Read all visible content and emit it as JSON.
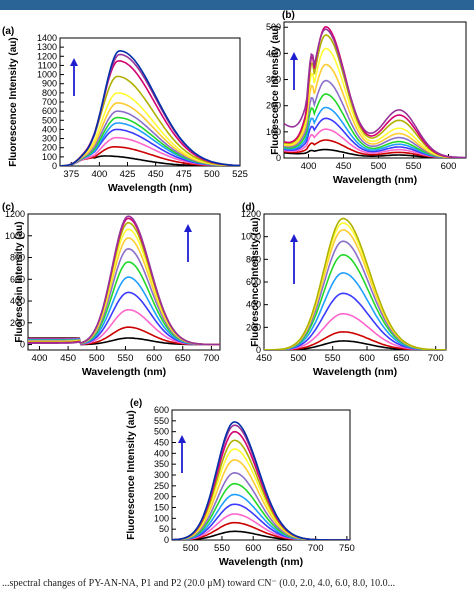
{
  "page": {
    "caption": "...spectral changes of PY-AN-NA, P1 and P2 (20.0 μM) toward CN⁻ (0.0, 2.0, 4.0, 6.0, 8.0, 10.0..."
  },
  "colors": {
    "header_bar": "#2a6496",
    "arrow": "#1f1fcf",
    "palette": [
      "#000000",
      "#cc0000",
      "#ff66cc",
      "#3b3bff",
      "#1f9fff",
      "#23d82a",
      "#8c6fc9",
      "#ffcc33",
      "#ffff33",
      "#b0b000",
      "#d40070",
      "#993399",
      "#002fa8",
      "#00c8d8",
      "#445566",
      "#2a6a2a",
      "#111111"
    ]
  },
  "chart_data": [
    {
      "panel": "(a)",
      "type": "line",
      "xlabel": "Wavelength (nm)",
      "ylabel": "Fluorescence Intensity (au)",
      "xlim": [
        365,
        525
      ],
      "ylim": [
        0,
        1400
      ],
      "xticks": [
        375,
        400,
        425,
        450,
        475,
        500,
        525
      ],
      "yticks": [
        0,
        100,
        200,
        300,
        400,
        500,
        600,
        700,
        800,
        900,
        1000,
        1100,
        1200,
        1300,
        1400
      ],
      "arrow": "up",
      "series_peaks": [
        {
          "peak_x": 405,
          "peak_y": 110
        },
        {
          "peak_x": 413,
          "peak_y": 210
        },
        {
          "peak_x": 415,
          "peak_y": 310
        },
        {
          "peak_x": 415,
          "peak_y": 400
        },
        {
          "peak_x": 416,
          "peak_y": 470
        },
        {
          "peak_x": 416,
          "peak_y": 530
        },
        {
          "peak_x": 416,
          "peak_y": 600
        },
        {
          "peak_x": 416,
          "peak_y": 690
        },
        {
          "peak_x": 416,
          "peak_y": 800
        },
        {
          "peak_x": 416,
          "peak_y": 980
        },
        {
          "peak_x": 417,
          "peak_y": 1150
        },
        {
          "peak_x": 418,
          "peak_y": 1220
        },
        {
          "peak_x": 418,
          "peak_y": 1260
        }
      ]
    },
    {
      "panel": "(b)",
      "type": "line",
      "xlabel": "Wavelength (nm)",
      "ylabel": "Fluorescence Intensity (au)",
      "xlim": [
        365,
        625
      ],
      "ylim": [
        0,
        520
      ],
      "xticks": [
        400,
        450,
        500,
        550,
        600
      ],
      "yticks": [
        0,
        100,
        200,
        300,
        400,
        500
      ],
      "arrow": "up",
      "series_peaks": [
        {
          "peak_x": 425,
          "peak_y": 25,
          "second_peak_y": 10
        },
        {
          "peak_x": 425,
          "peak_y": 60,
          "second_peak_y": 20
        },
        {
          "peak_x": 425,
          "peak_y": 100,
          "second_peak_y": 30
        },
        {
          "peak_x": 425,
          "peak_y": 140,
          "second_peak_y": 40
        },
        {
          "peak_x": 425,
          "peak_y": 180,
          "second_peak_y": 50
        },
        {
          "peak_x": 425,
          "peak_y": 230,
          "second_peak_y": 60
        },
        {
          "peak_x": 425,
          "peak_y": 280,
          "second_peak_y": 75
        },
        {
          "peak_x": 425,
          "peak_y": 340,
          "second_peak_y": 90
        },
        {
          "peak_x": 425,
          "peak_y": 400,
          "second_peak_y": 110
        },
        {
          "peak_x": 425,
          "peak_y": 450,
          "second_peak_y": 140
        },
        {
          "peak_x": 425,
          "peak_y": 480,
          "second_peak_y": 160
        },
        {
          "peak_x": 425,
          "peak_y": 445,
          "second_peak_y": 175
        }
      ]
    },
    {
      "panel": "(c)",
      "type": "line",
      "xlabel": "Wavelength (nm)",
      "ylabel": "Fluorescein Intensity (au)",
      "xlim": [
        380,
        715
      ],
      "ylim": [
        -50,
        1200
      ],
      "xticks": [
        400,
        450,
        500,
        550,
        600,
        650,
        700
      ],
      "yticks": [
        0,
        200,
        400,
        600,
        800,
        1000,
        1200
      ],
      "arrow": "up",
      "series_peaks": [
        {
          "peak_x": 555,
          "peak_y": 60
        },
        {
          "peak_x": 555,
          "peak_y": 160
        },
        {
          "peak_x": 555,
          "peak_y": 320
        },
        {
          "peak_x": 555,
          "peak_y": 480
        },
        {
          "peak_x": 555,
          "peak_y": 620
        },
        {
          "peak_x": 555,
          "peak_y": 760
        },
        {
          "peak_x": 555,
          "peak_y": 880
        },
        {
          "peak_x": 555,
          "peak_y": 980
        },
        {
          "peak_x": 555,
          "peak_y": 1060
        },
        {
          "peak_x": 555,
          "peak_y": 1120
        },
        {
          "peak_x": 555,
          "peak_y": 1160
        },
        {
          "peak_x": 555,
          "peak_y": 1180
        }
      ]
    },
    {
      "panel": "(d)",
      "type": "line",
      "xlabel": "Wavelength (nm)",
      "ylabel": "Fluorescence Intensity (au)",
      "xlim": [
        450,
        715
      ],
      "ylim": [
        0,
        1200
      ],
      "xticks": [
        450,
        500,
        550,
        600,
        650,
        700
      ],
      "yticks": [
        0,
        200,
        400,
        600,
        800,
        1000,
        1200
      ],
      "arrow": "up",
      "series_peaks": [
        {
          "peak_x": 565,
          "peak_y": 80
        },
        {
          "peak_x": 565,
          "peak_y": 160
        },
        {
          "peak_x": 565,
          "peak_y": 320
        },
        {
          "peak_x": 565,
          "peak_y": 500
        },
        {
          "peak_x": 565,
          "peak_y": 680
        },
        {
          "peak_x": 565,
          "peak_y": 840
        },
        {
          "peak_x": 565,
          "peak_y": 960
        },
        {
          "peak_x": 565,
          "peak_y": 1060
        },
        {
          "peak_x": 565,
          "peak_y": 1120
        },
        {
          "peak_x": 565,
          "peak_y": 1160
        }
      ]
    },
    {
      "panel": "(e)",
      "type": "line",
      "xlabel": "Wavelength (nm)",
      "ylabel": "Fluorescence Intensity (au)",
      "xlim": [
        470,
        755
      ],
      "ylim": [
        0,
        600
      ],
      "xticks": [
        500,
        550,
        600,
        650,
        700,
        750
      ],
      "yticks": [
        0,
        50,
        100,
        150,
        200,
        250,
        300,
        350,
        400,
        450,
        500,
        550,
        600
      ],
      "arrow": "up",
      "series_peaks": [
        {
          "peak_x": 570,
          "peak_y": 40
        },
        {
          "peak_x": 570,
          "peak_y": 80
        },
        {
          "peak_x": 570,
          "peak_y": 120
        },
        {
          "peak_x": 570,
          "peak_y": 165
        },
        {
          "peak_x": 570,
          "peak_y": 210
        },
        {
          "peak_x": 570,
          "peak_y": 260
        },
        {
          "peak_x": 570,
          "peak_y": 310
        },
        {
          "peak_x": 570,
          "peak_y": 370
        },
        {
          "peak_x": 570,
          "peak_y": 420
        },
        {
          "peak_x": 570,
          "peak_y": 460
        },
        {
          "peak_x": 570,
          "peak_y": 500
        },
        {
          "peak_x": 570,
          "peak_y": 530
        },
        {
          "peak_x": 570,
          "peak_y": 545
        }
      ]
    }
  ]
}
